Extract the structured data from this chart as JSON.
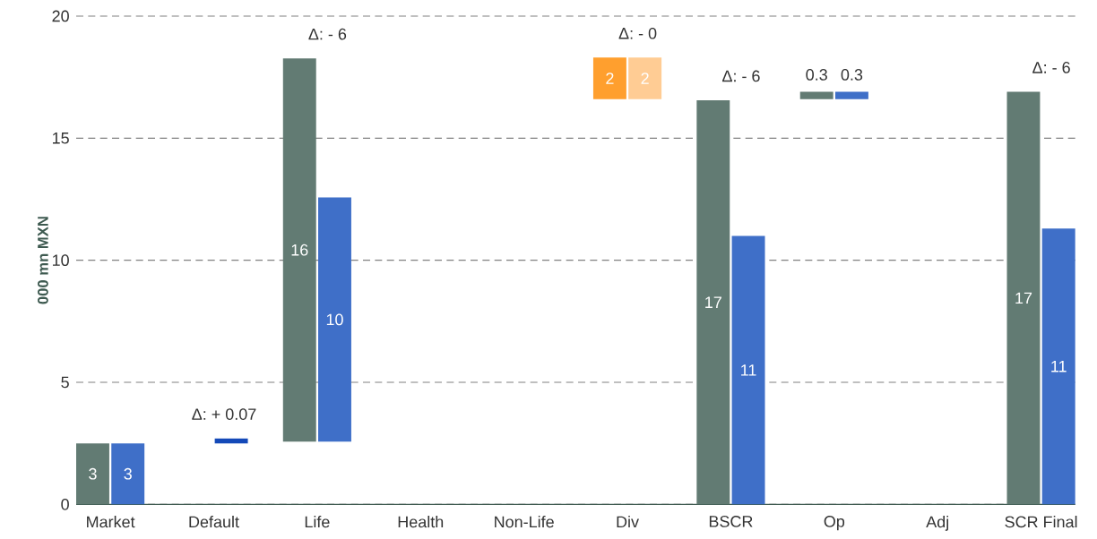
{
  "chart_data": {
    "type": "bar",
    "ylabel": "000 mn MXN",
    "categories": [
      "Market",
      "Default",
      "Life",
      "Health",
      "Non-Life",
      "Div",
      "BSCR",
      "Op",
      "Adj",
      "SCR Final"
    ],
    "series": [
      {
        "values": [
          2.5,
          null,
          15.7,
          null,
          null,
          1.7,
          16.55,
          0.3,
          null,
          16.9
        ],
        "base": [
          0,
          null,
          2.57,
          null,
          null,
          16.6,
          0,
          16.6,
          null,
          0
        ],
        "colors": [
          "#627b73",
          null,
          "#627b73",
          null,
          null,
          "#ff9f2e",
          "#627b73",
          "#627b73",
          null,
          "#627b73"
        ],
        "value_labels": [
          "3",
          null,
          "16",
          null,
          null,
          "2",
          "17",
          "0.3",
          null,
          "17"
        ]
      },
      {
        "values": [
          2.5,
          0.2,
          10.0,
          null,
          null,
          1.7,
          11.0,
          0.3,
          null,
          11.3
        ],
        "base": [
          0,
          2.5,
          2.57,
          null,
          null,
          16.6,
          0,
          16.6,
          null,
          0
        ],
        "colors": [
          "#3f6fc8",
          "#1449b8",
          "#3f6fc8",
          null,
          null,
          "#ffcc94",
          "#3f6fc8",
          "#3f6fc8",
          null,
          "#3f6fc8"
        ],
        "value_labels": [
          "3",
          null,
          "10",
          null,
          null,
          "2",
          "11",
          "0.3",
          null,
          "11"
        ]
      }
    ],
    "annotations": [
      {
        "text": "Δ: + 0.07",
        "x": "Default",
        "y": 2.7
      },
      {
        "text": "Δ: - 6",
        "x": "Life",
        "y": 18.27
      },
      {
        "text": "Δ: - 0",
        "x": "Div",
        "y": 18.3
      },
      {
        "text": "Δ: - 6",
        "x": "BSCR",
        "y": 16.55
      },
      {
        "text": "Δ: - 6",
        "x": "SCR Final",
        "y": 16.9
      }
    ],
    "ylim": [
      0,
      20
    ],
    "yticks": [
      0,
      5,
      10,
      15,
      20
    ],
    "grid": "y"
  }
}
